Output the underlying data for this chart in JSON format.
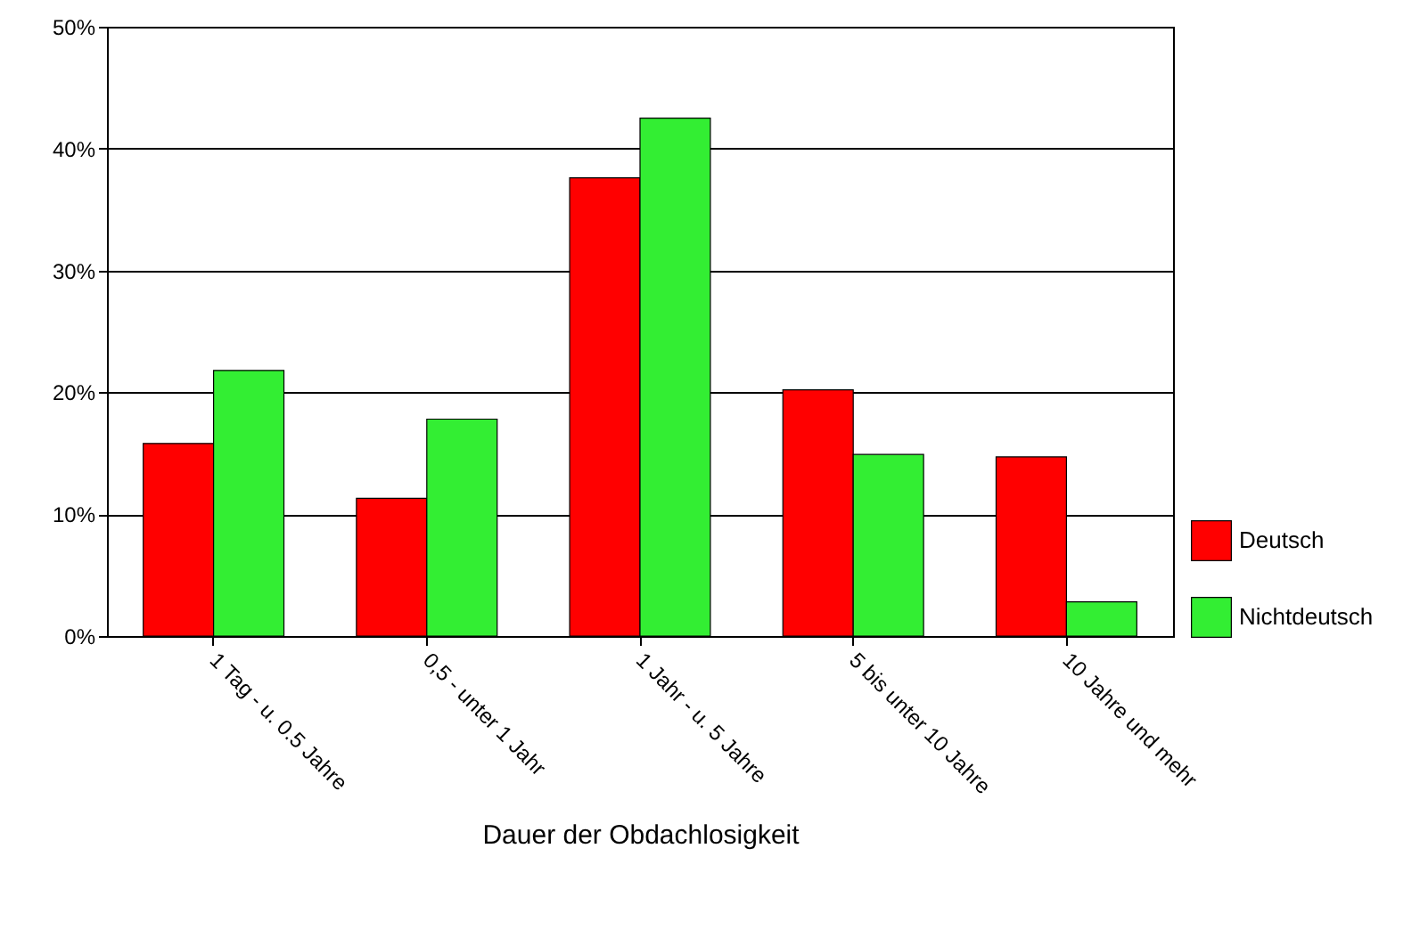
{
  "chart_data": {
    "type": "bar",
    "xlabel": "Dauer der Obdachlosigkeit",
    "categories": [
      "1 Tag - u. 0.5 Jahre",
      "0,5 - unter 1 Jahr",
      "1 Jahr - u. 5 Jahre",
      "5 bis unter 10 Jahre",
      "10 Jahre und mehr"
    ],
    "series": [
      {
        "name": "Deutsch",
        "color": "#ff0000",
        "values": [
          15.8,
          11.3,
          37.6,
          20.2,
          14.7
        ]
      },
      {
        "name": "Nichtdeutsch",
        "color": "#33ee33",
        "values": [
          21.8,
          17.8,
          42.5,
          14.9,
          2.8
        ]
      }
    ],
    "ylim": [
      0,
      50
    ],
    "yticks": [
      {
        "value": 0,
        "label": "0%"
      },
      {
        "value": 10,
        "label": "10%"
      },
      {
        "value": 20,
        "label": "20%"
      },
      {
        "value": 30,
        "label": "30%"
      },
      {
        "value": 40,
        "label": "40%"
      },
      {
        "value": 50,
        "label": "50%"
      }
    ],
    "grid": "y",
    "legend": "right"
  }
}
